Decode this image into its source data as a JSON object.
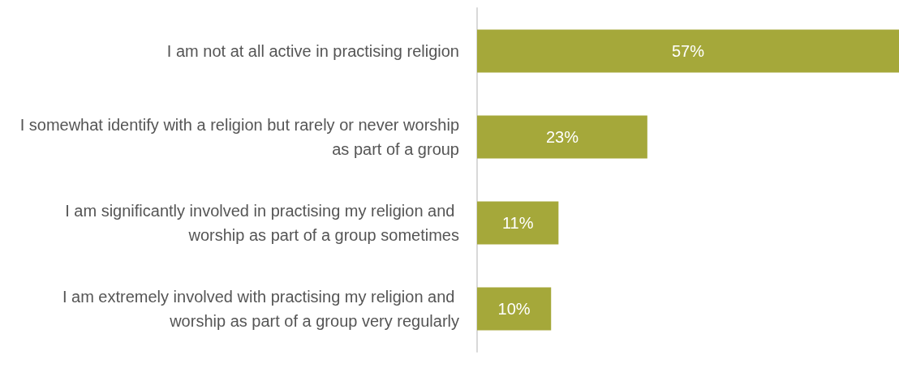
{
  "chart_data": {
    "type": "bar",
    "orientation": "horizontal",
    "categories": [
      "I am not at all active in practising religion",
      "I somewhat identify with a religion but rarely or never worship as part of a group",
      "I am significantly involved in practising my religion and worship as part of a group sometimes",
      "I am extremely involved with practising my religion and worship as part of a group very regularly"
    ],
    "values": [
      57,
      23,
      11,
      10
    ],
    "value_labels": [
      "57%",
      "23%",
      "11%",
      "10%"
    ],
    "color": "#a5a83a"
  }
}
